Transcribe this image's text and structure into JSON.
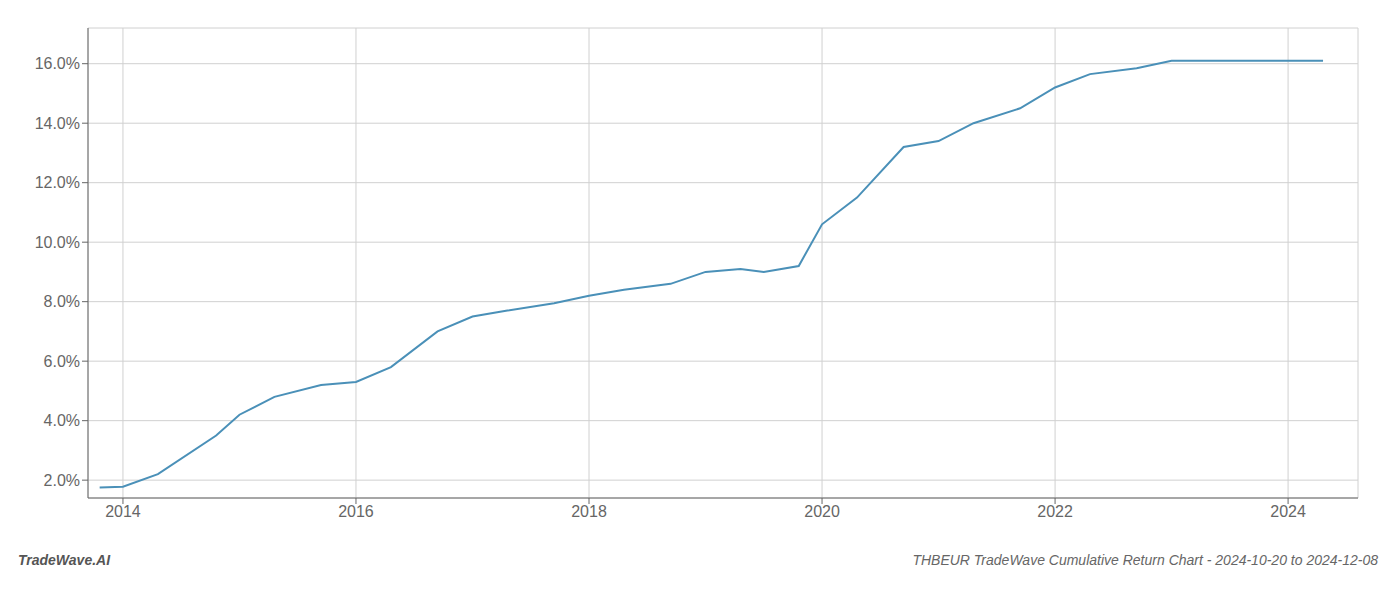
{
  "chart_data": {
    "type": "line",
    "title": "THBEUR TradeWave Cumulative Return Chart - 2024-10-20 to 2024-12-08",
    "annotations": [
      "TradeWave.AI"
    ],
    "x": [
      2013.8,
      2014.0,
      2014.3,
      2014.8,
      2015.0,
      2015.3,
      2015.7,
      2016.0,
      2016.3,
      2016.7,
      2017.0,
      2017.3,
      2017.7,
      2018.0,
      2018.3,
      2018.7,
      2019.0,
      2019.3,
      2019.5,
      2019.8,
      2020.0,
      2020.3,
      2020.7,
      2021.0,
      2021.3,
      2021.7,
      2022.0,
      2022.3,
      2022.7,
      2023.0,
      2023.3,
      2023.7,
      2024.0,
      2024.3
    ],
    "values": [
      1.75,
      1.78,
      2.2,
      3.5,
      4.2,
      4.8,
      5.2,
      5.3,
      5.8,
      7.0,
      7.5,
      7.7,
      7.95,
      8.2,
      8.4,
      8.6,
      9.0,
      9.1,
      9.0,
      9.2,
      10.6,
      11.5,
      13.2,
      13.4,
      14.0,
      14.5,
      15.2,
      15.65,
      15.85,
      16.1,
      16.1,
      16.1,
      16.1,
      16.1
    ],
    "color": "#4a90b8",
    "xlim": [
      2013.7,
      2024.6
    ],
    "ylim": [
      1.4,
      17.2
    ],
    "xticks": [
      2014,
      2016,
      2018,
      2020,
      2022,
      2024
    ],
    "yticks": [
      {
        "value": 2.0,
        "label": "2.0%"
      },
      {
        "value": 4.0,
        "label": "4.0%"
      },
      {
        "value": 6.0,
        "label": "6.0%"
      },
      {
        "value": 8.0,
        "label": "8.0%"
      },
      {
        "value": 10.0,
        "label": "10.0%"
      },
      {
        "value": 12.0,
        "label": "12.0%"
      },
      {
        "value": 14.0,
        "label": "14.0%"
      },
      {
        "value": 16.0,
        "label": "16.0%"
      }
    ],
    "grid": true
  }
}
